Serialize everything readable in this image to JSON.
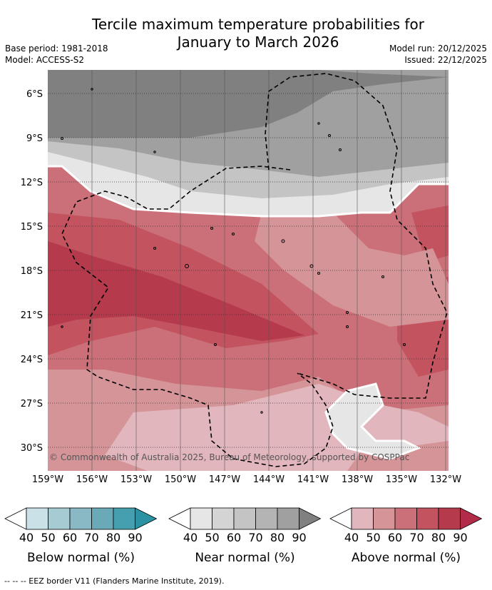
{
  "title": {
    "line1": "Tercile maximum temperature probabilities for",
    "line2": "January to March 2026"
  },
  "meta": {
    "base_period": "Base period: 1981-2018",
    "model": "Model: ACCESS-S2",
    "model_run": "Model run: 20/12/2025",
    "issued": "Issued: 22/12/2025"
  },
  "map": {
    "lat_labels": [
      "6°S",
      "9°S",
      "12°S",
      "15°S",
      "18°S",
      "21°S",
      "24°S",
      "27°S",
      "30°S"
    ],
    "lon_labels": [
      "159°W",
      "156°W",
      "153°W",
      "150°W",
      "147°W",
      "144°W",
      "141°W",
      "138°W",
      "135°W",
      "132°W"
    ],
    "copyright": "© Commonwealth of Australia 2025, Bureau of Meteorology, supported by COSPPac"
  },
  "legend": {
    "ticks": [
      "40",
      "50",
      "60",
      "70",
      "80",
      "90"
    ],
    "below": {
      "title": "Below normal (%)",
      "colors": [
        "#ffffff",
        "#c9e1e7",
        "#a7cbd3",
        "#89b9c5",
        "#6aaab8",
        "#459fae",
        "#2b92a3"
      ]
    },
    "near": {
      "title": "Near normal (%)",
      "colors": [
        "#ffffff",
        "#e6e6e6",
        "#d4d4d4",
        "#c4c4c4",
        "#b4b4b4",
        "#a0a0a0",
        "#808080"
      ]
    },
    "above": {
      "title": "Above normal (%)",
      "colors": [
        "#ffffff",
        "#e2b6bd",
        "#d59498",
        "#cb7078",
        "#c2535f",
        "#b43a4c",
        "#b02c48"
      ]
    }
  },
  "footnote": "--  --  -- EEZ border V11 (Flanders Marine Institute, 2019)."
}
